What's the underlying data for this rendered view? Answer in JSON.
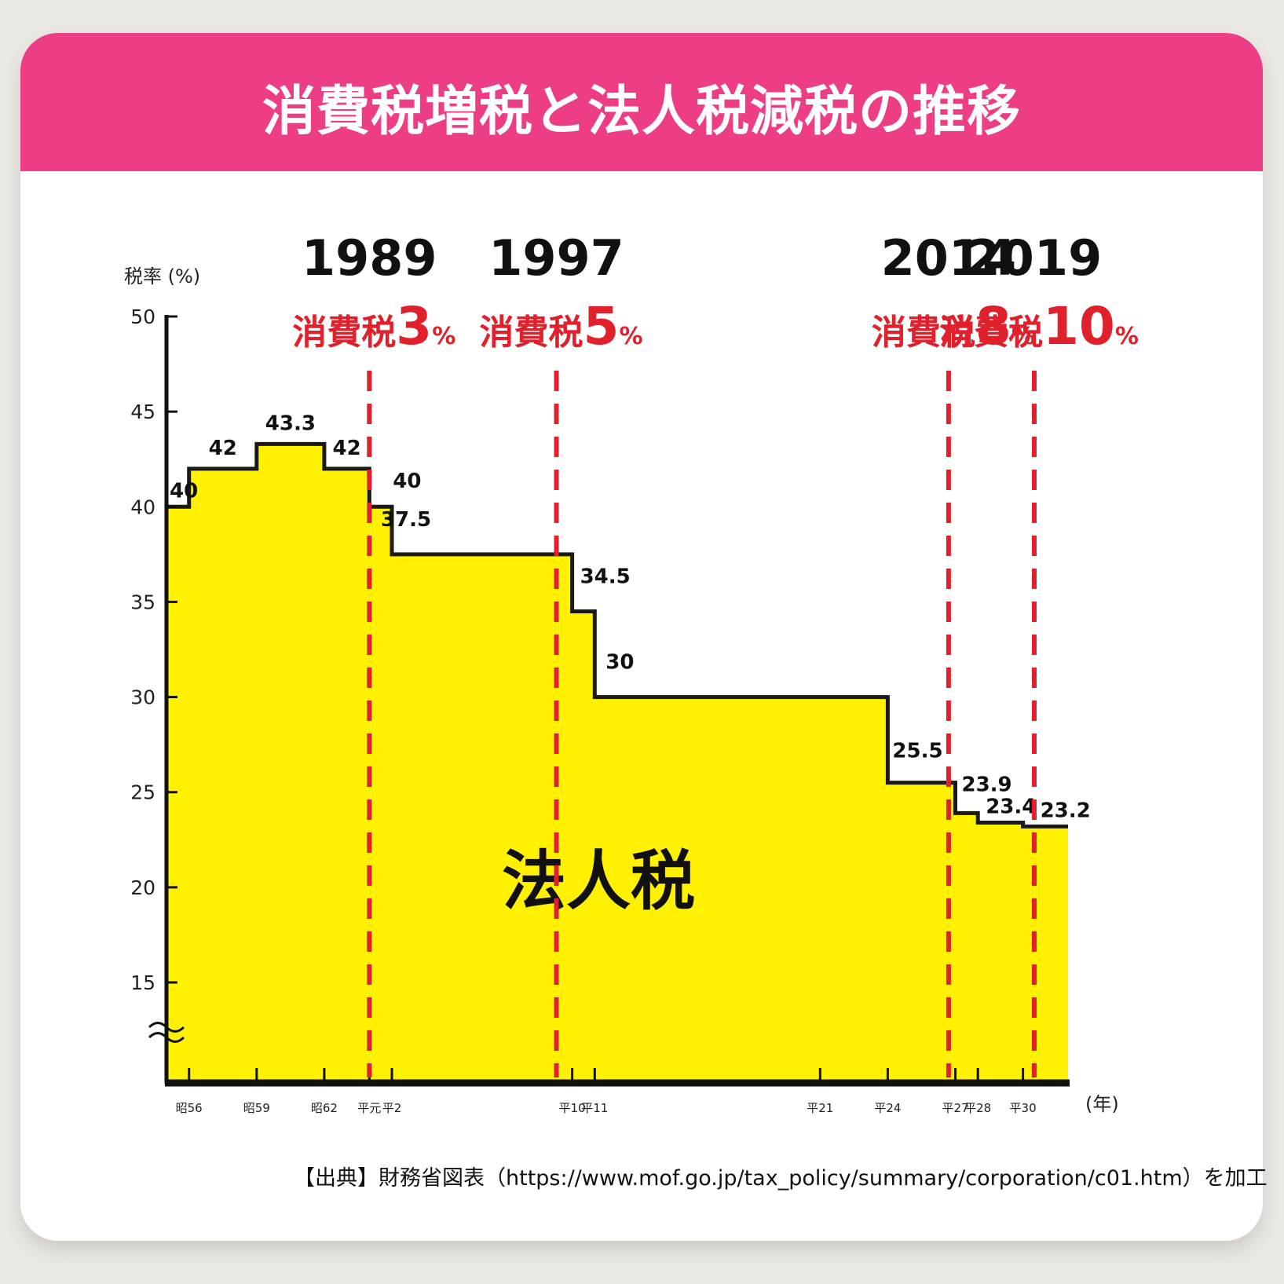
{
  "header": {
    "title": "消費税増税と法人税減税の推移"
  },
  "chart_data": {
    "type": "area",
    "step": true,
    "ylabel": "税率 (%)",
    "xlabel": "(年)",
    "yticks": [
      15,
      20,
      25,
      30,
      35,
      40,
      45,
      50
    ],
    "ylim": [
      11,
      50
    ],
    "axis_break": true,
    "fill_color": "#fff100",
    "line_color": "#1a1a1a",
    "area_label": "法人税",
    "x_ticks": [
      {
        "label": "昭56",
        "pos": 1
      },
      {
        "label": "昭59",
        "pos": 4
      },
      {
        "label": "昭62",
        "pos": 7
      },
      {
        "label": "平元",
        "pos": 9
      },
      {
        "label": "平2",
        "pos": 10
      },
      {
        "label": "平10",
        "pos": 18
      },
      {
        "label": "平11",
        "pos": 19
      },
      {
        "label": "平21",
        "pos": 29
      },
      {
        "label": "平24",
        "pos": 32
      },
      {
        "label": "平27",
        "pos": 35
      },
      {
        "label": "平28",
        "pos": 36
      },
      {
        "label": "平30",
        "pos": 38
      }
    ],
    "x_start": 0,
    "x_end": 40,
    "steps": [
      {
        "from": 0,
        "to": 1,
        "value": 40,
        "label": "40"
      },
      {
        "from": 1,
        "to": 4,
        "value": 42,
        "label": "42"
      },
      {
        "from": 4,
        "to": 7,
        "value": 43.3,
        "label": "43.3"
      },
      {
        "from": 7,
        "to": 9,
        "value": 42,
        "label": "42"
      },
      {
        "from": 9,
        "to": 10,
        "value": 40,
        "label": "40"
      },
      {
        "from": 10,
        "to": 18,
        "value": 37.5,
        "label": "37.5"
      },
      {
        "from": 18,
        "to": 19,
        "value": 34.5,
        "label": "34.5"
      },
      {
        "from": 19,
        "to": 32,
        "value": 30,
        "label": "30"
      },
      {
        "from": 32,
        "to": 35,
        "value": 25.5,
        "label": "25.5"
      },
      {
        "from": 35,
        "to": 36,
        "value": 23.9,
        "label": "23.9"
      },
      {
        "from": 36,
        "to": 38,
        "value": 23.4,
        "label": "23.4"
      },
      {
        "from": 38,
        "to": 40,
        "value": 23.2,
        "label": "23.2"
      }
    ],
    "events": [
      {
        "year": "1989",
        "text": "消費税",
        "rate": "3",
        "unit": "%",
        "pos": 9
      },
      {
        "year": "1997",
        "text": "消費税",
        "rate": "5",
        "unit": "%",
        "pos": 17.3
      },
      {
        "year": "2014",
        "text": "消費税",
        "rate": "8",
        "unit": "%",
        "pos": 34.7
      },
      {
        "year": "2019",
        "text": "消費税",
        "rate": "10",
        "unit": "%",
        "pos": 38.5
      }
    ],
    "event_color": "#e0202b"
  },
  "source": "【出典】財務省図表（https://www.mof.go.jp/tax_policy/summary/corporation/c01.htm）を加工"
}
